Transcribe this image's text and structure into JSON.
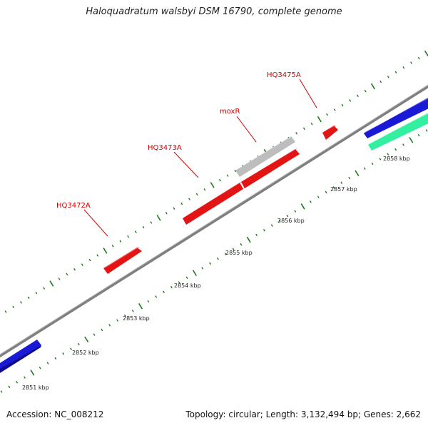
{
  "title": "Haloquadratum walsbyi DSM 16790, complete genome",
  "footer": {
    "accession": "Accession: NC_008212",
    "summary": "Topology: circular; Length: 3,132,494 bp; Genes: 2,662"
  },
  "colors": {
    "backbone": "#8a8a8a",
    "tick": "#1f7a1f",
    "gene_red": "#e31414",
    "gene_gray": "#bdbdbd",
    "gene_blue": "#1a1ad6",
    "gene_green": "#33f0a0",
    "label_red": "#d40000"
  },
  "scale": {
    "kbp_labels": [
      "2851 kbp",
      "2852 kbp",
      "2853 kbp",
      "2854 kbp",
      "2855 kbp",
      "2856 kbp",
      "2857 kbp",
      "2858 kbp"
    ]
  },
  "genes": [
    {
      "name": "HQ3472A",
      "label": "HQ3472A",
      "color": "red"
    },
    {
      "name": "HQ3473A",
      "label": "HQ3473A",
      "color": "red"
    },
    {
      "name": "moxR",
      "label": "moxR",
      "color": "gray"
    },
    {
      "name": "HQ3475A",
      "label": "HQ3475A",
      "color": "red"
    }
  ]
}
